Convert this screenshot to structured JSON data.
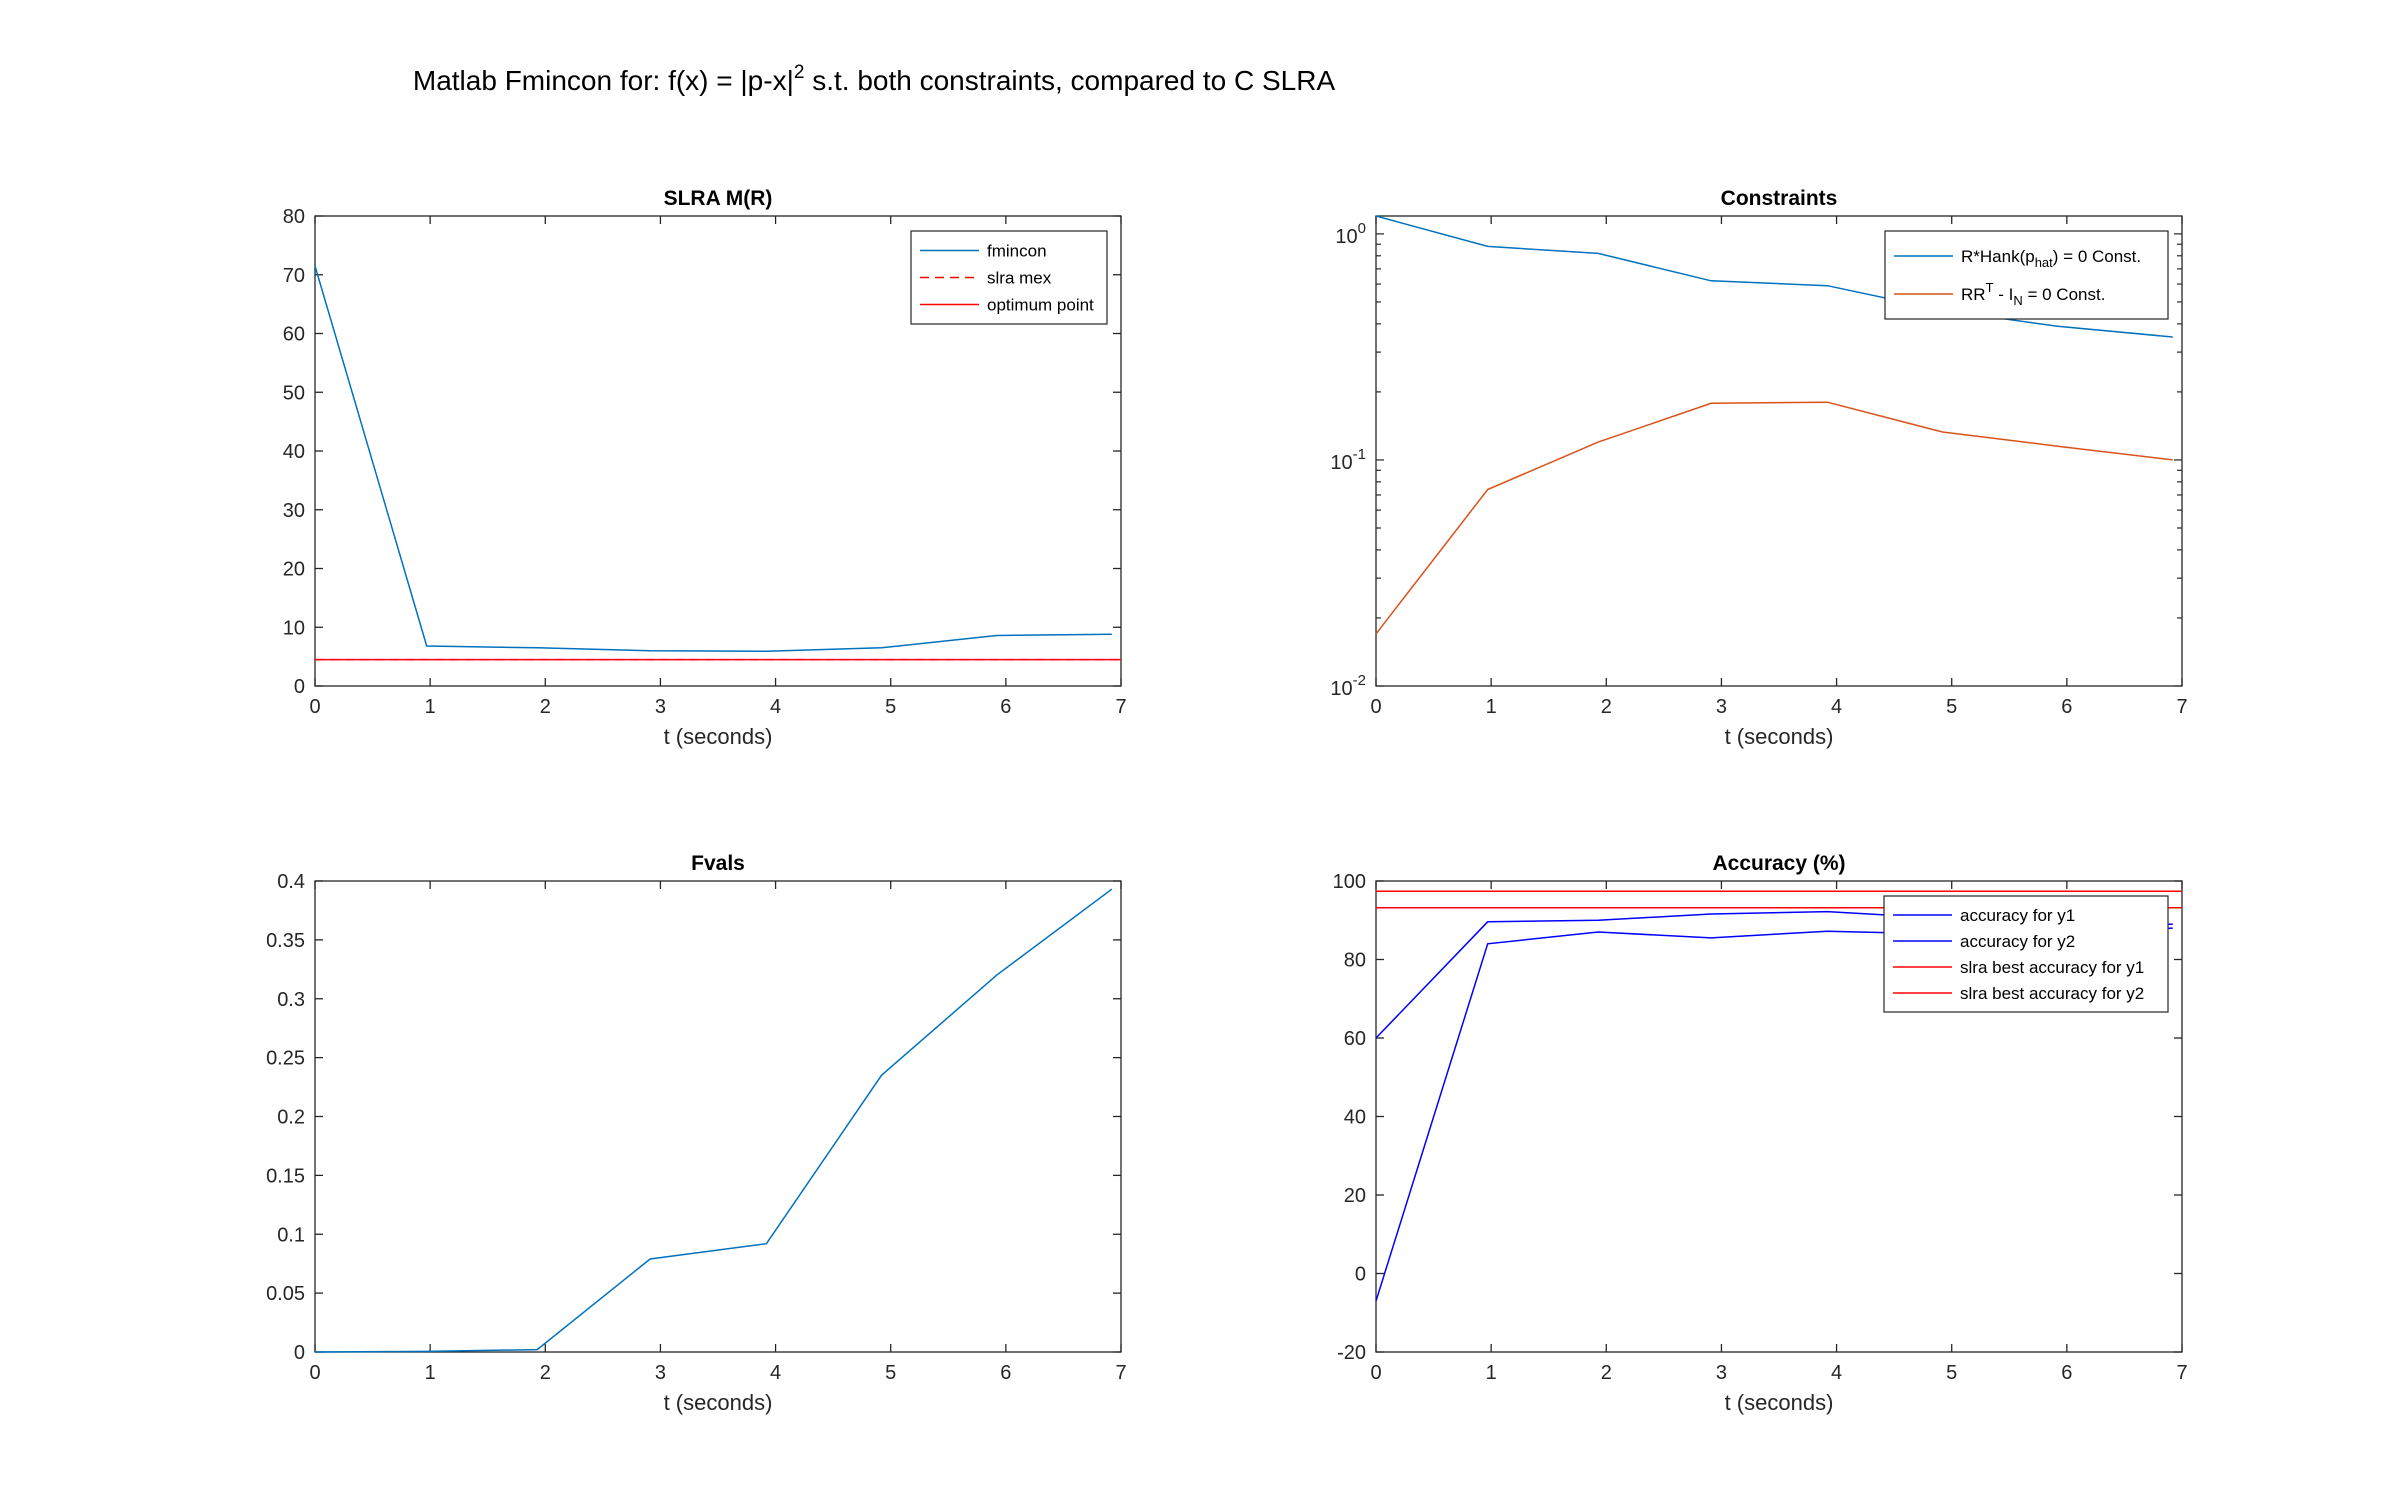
{
  "figure": {
    "title": "Matlab Fmincon for: f(x) = |p-x|",
    "title_sup": "2",
    "title_rest": " s.t. both constraints, compared to C SLRA"
  },
  "chart_data": [
    {
      "type": "line",
      "title": "SLRA M(R)",
      "xlabel": "t (seconds)",
      "ylabel": "",
      "xlim": [
        0,
        7
      ],
      "ylim": [
        0,
        80
      ],
      "yscale": "linear",
      "xticks": [
        0,
        1,
        2,
        3,
        4,
        5,
        6,
        7
      ],
      "yticks": [
        0,
        10,
        20,
        30,
        40,
        50,
        60,
        70,
        80
      ],
      "legend_position": "top-right",
      "series": [
        {
          "name": "fmincon",
          "color": "#0072bd",
          "dash": "solid",
          "x": [
            0.0,
            0.97,
            1.93,
            2.91,
            3.92,
            4.92,
            5.92,
            6.92
          ],
          "y": [
            71.5,
            6.8,
            6.5,
            6.0,
            5.9,
            6.5,
            8.6,
            8.8
          ]
        },
        {
          "name": "slra mex",
          "color": "#ff0000",
          "dash": "dashed",
          "x": [
            0,
            7
          ],
          "y": [
            4.5,
            4.5
          ]
        },
        {
          "name": "optimum point",
          "color": "#ff0000",
          "dash": "solid",
          "x": [
            0,
            7
          ],
          "y": [
            4.5,
            4.5
          ]
        }
      ]
    },
    {
      "type": "line",
      "title": "Constraints",
      "xlabel": "t (seconds)",
      "ylabel": "",
      "xlim": [
        0,
        7
      ],
      "ylim": [
        0.01,
        1.2
      ],
      "yscale": "log",
      "xticks": [
        0,
        1,
        2,
        3,
        4,
        5,
        6,
        7
      ],
      "yticks": [
        {
          "base": "10",
          "exp": "-2",
          "value": 0.01
        },
        {
          "base": "10",
          "exp": "-1",
          "value": 0.1
        },
        {
          "base": "10",
          "exp": "0",
          "value": 1
        }
      ],
      "legend_position": "top-right",
      "series": [
        {
          "name_parts": [
            "R*Hank(p",
            "hat",
            ") = 0 Const."
          ],
          "color": "#0072bd",
          "dash": "solid",
          "x": [
            0.0,
            0.97,
            1.93,
            2.91,
            3.92,
            4.92,
            5.92,
            6.92
          ],
          "y": [
            1.2,
            0.88,
            0.82,
            0.62,
            0.59,
            0.46,
            0.39,
            0.35
          ]
        },
        {
          "name_parts": [
            "RR",
            "T",
            " - I",
            "N",
            " = 0 Const."
          ],
          "color": "#d95319",
          "dash": "solid",
          "x": [
            0.0,
            0.97,
            1.93,
            2.91,
            3.92,
            4.92,
            5.92,
            6.92
          ],
          "y": [
            0.017,
            0.074,
            0.12,
            0.178,
            0.18,
            0.133,
            0.115,
            0.1
          ]
        }
      ]
    },
    {
      "type": "line",
      "title": "Fvals",
      "xlabel": "t (seconds)",
      "ylabel": "",
      "xlim": [
        0,
        7
      ],
      "ylim": [
        0,
        0.4
      ],
      "yscale": "linear",
      "xticks": [
        0,
        1,
        2,
        3,
        4,
        5,
        6,
        7
      ],
      "yticks": [
        0,
        0.05,
        0.1,
        0.15,
        0.2,
        0.25,
        0.3,
        0.35,
        0.4
      ],
      "legend_position": "none",
      "series": [
        {
          "color": "#0072bd",
          "dash": "solid",
          "x": [
            0.0,
            0.97,
            1.93,
            2.91,
            3.92,
            4.92,
            5.92,
            6.92
          ],
          "y": [
            0.0,
            0.0005,
            0.002,
            0.079,
            0.092,
            0.235,
            0.32,
            0.393
          ]
        }
      ]
    },
    {
      "type": "line",
      "title": "Accuracy (%)",
      "xlabel": "t (seconds)",
      "ylabel": "",
      "xlim": [
        0,
        7
      ],
      "ylim": [
        -20,
        100
      ],
      "yscale": "linear",
      "xticks": [
        0,
        1,
        2,
        3,
        4,
        5,
        6,
        7
      ],
      "yticks": [
        -20,
        0,
        20,
        40,
        60,
        80,
        100
      ],
      "legend_position": "top-right",
      "series": [
        {
          "name": "accuracy for y1",
          "color": "#0000ff",
          "dash": "solid",
          "x": [
            0.0,
            0.97,
            1.93,
            2.91,
            3.92,
            4.92,
            5.92,
            6.92
          ],
          "y": [
            60,
            89.6,
            90,
            91.6,
            92.2,
            90.5,
            89.5,
            89
          ]
        },
        {
          "name": "accuracy for y2",
          "color": "#0000ff",
          "dash": "solid",
          "x": [
            0.0,
            0.97,
            1.93,
            2.91,
            3.92,
            4.92,
            5.92,
            6.92
          ],
          "y": [
            -7,
            84,
            87,
            85.5,
            87.2,
            86.5,
            87,
            88
          ]
        },
        {
          "name": "slra best accuracy for y1",
          "color": "#ff0000",
          "dash": "solid",
          "x": [
            0,
            7
          ],
          "y": [
            97.4,
            97.4
          ]
        },
        {
          "name": "slra best accuracy for y2",
          "color": "#ff0000",
          "dash": "solid",
          "x": [
            0,
            7
          ],
          "y": [
            93.2,
            93.2
          ]
        }
      ]
    }
  ]
}
